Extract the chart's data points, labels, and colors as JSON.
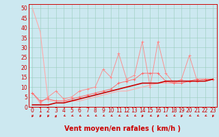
{
  "title": "",
  "xlabel": "Vent moyen/en rafales ( km/h )",
  "background_color": "#cce8f0",
  "grid_color": "#99ccbb",
  "xlim": [
    -0.5,
    23.5
  ],
  "ylim": [
    0,
    52
  ],
  "yticks": [
    0,
    5,
    10,
    15,
    20,
    25,
    30,
    35,
    40,
    45,
    50
  ],
  "xticks": [
    0,
    1,
    2,
    3,
    4,
    5,
    6,
    7,
    8,
    9,
    10,
    11,
    12,
    13,
    14,
    15,
    16,
    17,
    18,
    19,
    20,
    21,
    22,
    23
  ],
  "line1_x": [
    0,
    1,
    2,
    3,
    4,
    5,
    6,
    7,
    8,
    9,
    10,
    11,
    12,
    13,
    14,
    15,
    16,
    17,
    18,
    19,
    20,
    21,
    22,
    23
  ],
  "line1_y": [
    50,
    38,
    3,
    3,
    3,
    3,
    3,
    4,
    5,
    6,
    7,
    8,
    8,
    9,
    10,
    11,
    12,
    12,
    12,
    13,
    13,
    13,
    13,
    14
  ],
  "line2_x": [
    0,
    1,
    2,
    3,
    4,
    5,
    6,
    7,
    8,
    9,
    10,
    11,
    12,
    13,
    14,
    15,
    16,
    17,
    18,
    19,
    20,
    21,
    22,
    23
  ],
  "line2_y": [
    7,
    3,
    4,
    3,
    3,
    4,
    5,
    6,
    7,
    8,
    9,
    12,
    13,
    14,
    17,
    17,
    17,
    13,
    12,
    12,
    13,
    14,
    14,
    14
  ],
  "line3_x": [
    0,
    1,
    2,
    3,
    4,
    5,
    6,
    7,
    8,
    9,
    10,
    11,
    12,
    13,
    14,
    15,
    16,
    17,
    18,
    19,
    20,
    21,
    22,
    23
  ],
  "line3_y": [
    7,
    2,
    5,
    8,
    4,
    5,
    8,
    9,
    10,
    19,
    15,
    27,
    14,
    16,
    33,
    10,
    33,
    17,
    12,
    14,
    26,
    13,
    14,
    14
  ],
  "line4_x": [
    0,
    1,
    2,
    3,
    4,
    5,
    6,
    7,
    8,
    9,
    10,
    11,
    12,
    13,
    14,
    15,
    16,
    17,
    18,
    19,
    20,
    21,
    22,
    23
  ],
  "line4_y": [
    1,
    1,
    1,
    2,
    2,
    3,
    4,
    5,
    6,
    7,
    8,
    9,
    10,
    11,
    12,
    12,
    12,
    13,
    13,
    13,
    13,
    13,
    13,
    14
  ],
  "color_dark_red": "#cc0000",
  "color_light_red": "#ffaaaa",
  "color_med_red": "#ff6666",
  "color_salmon": "#ff8888",
  "xlabel_fontsize": 7,
  "tick_fontsize": 5.5,
  "line_width": 0.8,
  "arrow_angles_deg": [
    225,
    225,
    225,
    45,
    195,
    195,
    195,
    195,
    195,
    195,
    195,
    195,
    195,
    195,
    225,
    195,
    225,
    195,
    195,
    225,
    195,
    195,
    195,
    225
  ]
}
